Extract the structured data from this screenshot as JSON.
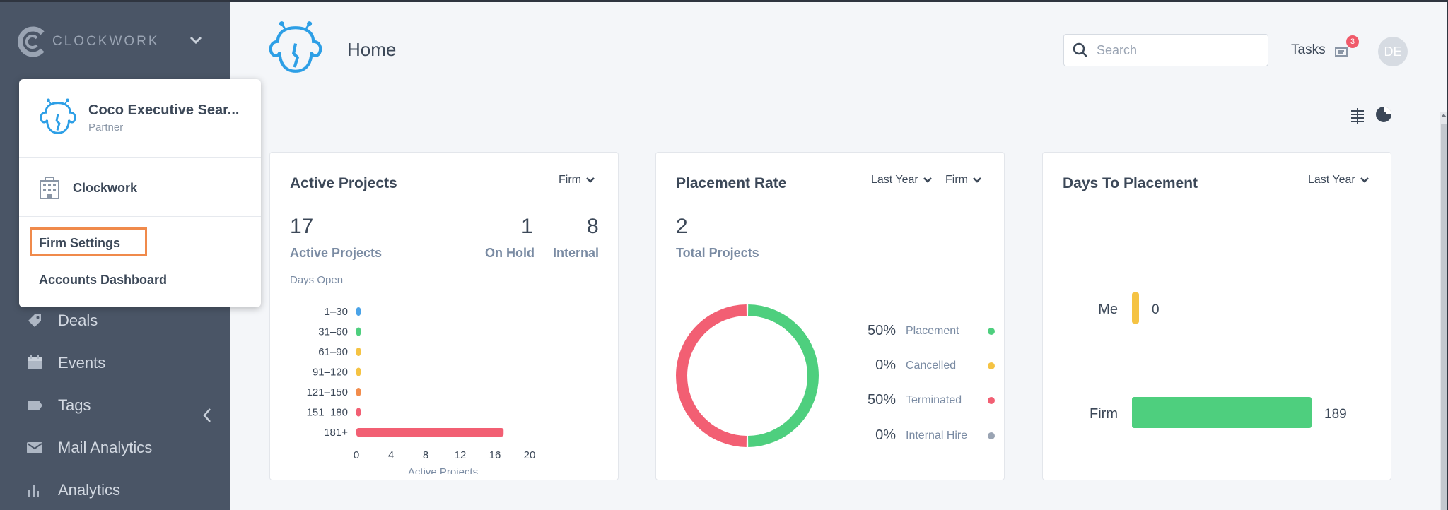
{
  "brand": {
    "name": "CLOCKWORK"
  },
  "sidebar": {
    "items": [
      {
        "label": "Deals",
        "icon": "tag-icon"
      },
      {
        "label": "Events",
        "icon": "calendar-icon"
      },
      {
        "label": "Tags",
        "icon": "label-icon"
      },
      {
        "label": "Mail Analytics",
        "icon": "mail-icon"
      },
      {
        "label": "Analytics",
        "icon": "bar-chart-icon"
      }
    ]
  },
  "dropdown": {
    "org_name": "Coco Executive Sear...",
    "org_role": "Partner",
    "workspace": "Clockwork",
    "links": [
      "Firm Settings",
      "Accounts Dashboard"
    ]
  },
  "header": {
    "title": "Home",
    "search_placeholder": "Search",
    "tasks_label": "Tasks",
    "tasks_count": "3",
    "avatar_initials": "DE"
  },
  "cards": {
    "active_projects": {
      "title": "Active Projects",
      "filter": "Firm",
      "stats": [
        {
          "value": "17",
          "label": "Active Projects"
        },
        {
          "value": "1",
          "label": "On Hold"
        },
        {
          "value": "8",
          "label": "Internal"
        }
      ]
    },
    "placement_rate": {
      "title": "Placement Rate",
      "filters": [
        "Last Year",
        "Firm"
      ],
      "total_value": "2",
      "total_label": "Total Projects"
    },
    "days_to_placement": {
      "title": "Days To Placement",
      "filter": "Last Year"
    }
  },
  "colors": {
    "sidebar": "#4a5566",
    "green": "#4ecf7e",
    "red": "#f25f73",
    "yellow": "#f5c343",
    "blue": "#4aa3e8",
    "orange": "#f28c4b",
    "grey": "#9aa4b3"
  },
  "chart_data": [
    {
      "type": "bar",
      "orientation": "horizontal",
      "title": "Days Open",
      "categories": [
        "1–30",
        "31–60",
        "61–90",
        "91–120",
        "121–150",
        "151–180",
        "181+"
      ],
      "values": [
        0,
        0,
        0,
        0,
        0,
        0,
        17
      ],
      "colors": [
        "#4aa3e8",
        "#4ecf7e",
        "#f5c343",
        "#f5c343",
        "#f28c4b",
        "#f25f73",
        "#f25f73"
      ],
      "xlabel": "Active Projects",
      "xticks": [
        0,
        4,
        8,
        12,
        16,
        20
      ],
      "xlim": [
        0,
        20
      ]
    },
    {
      "type": "pie",
      "donut": true,
      "slices": [
        {
          "label": "Placement",
          "value": 50,
          "display": "50%",
          "color": "#4ecf7e"
        },
        {
          "label": "Cancelled",
          "value": 0,
          "display": "0%",
          "color": "#f5c343"
        },
        {
          "label": "Terminated",
          "value": 50,
          "display": "50%",
          "color": "#f25f73"
        },
        {
          "label": "Internal Hire",
          "value": 0,
          "display": "0%",
          "color": "#9aa4b3"
        }
      ]
    },
    {
      "type": "bar",
      "orientation": "horizontal",
      "categories": [
        "Me",
        "Firm"
      ],
      "values": [
        0,
        189
      ],
      "colors": [
        "#f5c343",
        "#4ecf7e"
      ],
      "xlim": [
        0,
        189
      ]
    }
  ]
}
